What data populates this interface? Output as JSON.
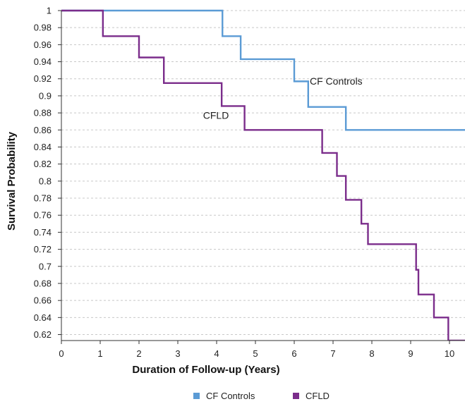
{
  "chart_data": {
    "type": "line",
    "step": true,
    "xlabel": "Duration of Follow-up (Years)",
    "ylabel": "Survival Probability",
    "xlim": [
      0,
      10.4
    ],
    "ylim": [
      0.613,
      1.0
    ],
    "xticks": [
      0,
      1,
      2,
      3,
      4,
      5,
      6,
      7,
      8,
      9,
      10
    ],
    "yticks": [
      1,
      0.98,
      0.96,
      0.94,
      0.92,
      0.9,
      0.88,
      0.86,
      0.84,
      0.82,
      0.8,
      0.78,
      0.76,
      0.74,
      0.72,
      0.7,
      0.68,
      0.66,
      0.64,
      0.62
    ],
    "grid": "horizontal-dashed",
    "legend_position": "bottom",
    "series": [
      {
        "name": "CF Controls",
        "color": "#5b9bd5",
        "x": [
          0,
          4.15,
          4.62,
          6.0,
          6.36,
          7.33,
          10.4
        ],
        "y": [
          1.0,
          0.97,
          0.943,
          0.917,
          0.887,
          0.86,
          0.86
        ]
      },
      {
        "name": "CFLD",
        "color": "#7b2d8b",
        "x": [
          0,
          1.07,
          2.0,
          2.64,
          4.13,
          4.72,
          6.72,
          7.1,
          7.33,
          7.73,
          7.9,
          9.14,
          9.2,
          9.6,
          9.97,
          10.4
        ],
        "y": [
          1.0,
          0.97,
          0.945,
          0.915,
          0.888,
          0.86,
          0.833,
          0.806,
          0.778,
          0.75,
          0.726,
          0.696,
          0.667,
          0.64,
          0.613,
          0.613
        ]
      }
    ],
    "annotations": [
      {
        "text": "CF Controls",
        "x": 6.4,
        "y": 0.913
      },
      {
        "text": "CFLD",
        "x": 3.65,
        "y": 0.873
      }
    ]
  }
}
